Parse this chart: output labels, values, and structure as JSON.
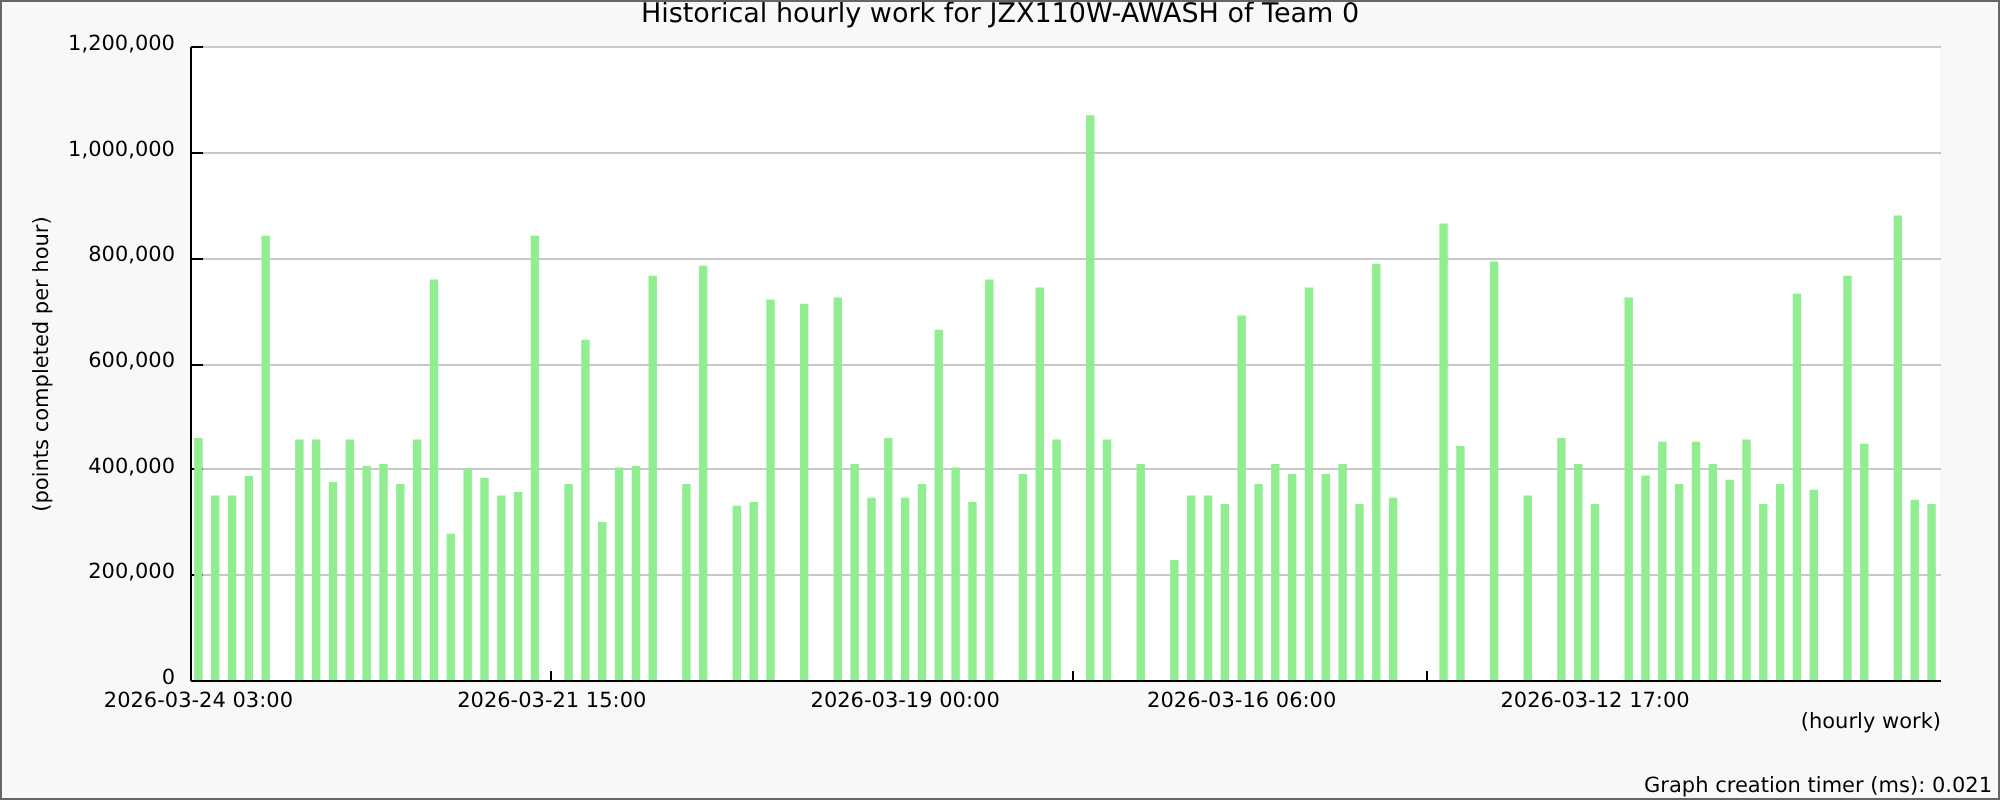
{
  "chart_data": {
    "type": "bar",
    "title": "Historical hourly work for JZX110W-AWASH of Team 0",
    "xlabel": "(hourly work)",
    "ylabel": "(points completed per hour)",
    "categories": [
      "2026-03-24 03:00",
      null,
      null,
      null,
      null,
      null,
      null,
      null,
      null,
      null,
      null,
      null,
      null,
      null,
      null,
      null,
      null,
      null,
      null,
      null,
      null,
      "2026-03-21 15:00",
      null,
      null,
      null,
      null,
      null,
      null,
      null,
      null,
      null,
      null,
      null,
      null,
      null,
      null,
      null,
      null,
      null,
      null,
      null,
      null,
      "2026-03-19 00:00",
      null,
      null,
      null,
      null,
      null,
      null,
      null,
      null,
      null,
      null,
      null,
      null,
      null,
      null,
      null,
      null,
      null,
      null,
      null,
      "2026-03-16 06:00",
      null,
      null,
      null,
      null,
      null,
      null,
      null,
      null,
      null,
      null,
      null,
      null,
      null,
      null,
      null,
      null,
      null,
      null,
      null,
      null,
      "2026-03-12 17:00",
      null,
      null,
      null,
      null,
      null,
      null,
      null,
      null,
      null,
      null,
      null,
      null,
      null,
      null,
      null,
      null,
      null,
      null,
      null,
      null
    ],
    "values": [
      458000,
      349000,
      349000,
      386000,
      841000,
      null,
      455000,
      455000,
      375000,
      455000,
      405000,
      409000,
      371000,
      455000,
      758000,
      277000,
      400000,
      383000,
      349000,
      356000,
      841000,
      null,
      371000,
      644000,
      299000,
      402000,
      405000,
      765000,
      null,
      371000,
      784000,
      null,
      330000,
      337000,
      720000,
      null,
      712000,
      null,
      724000,
      409000,
      345000,
      458000,
      345000,
      371000,
      663000,
      402000,
      337000,
      758000,
      null,
      390000,
      743000,
      455000,
      null,
      1069000,
      455000,
      null,
      409000,
      null,
      227000,
      349000,
      349000,
      333000,
      690000,
      371000,
      409000,
      390000,
      743000,
      390000,
      409000,
      333000,
      788000,
      345000,
      null,
      null,
      864000,
      443000,
      null,
      792000,
      null,
      349000,
      null,
      458000,
      409000,
      333000,
      null,
      724000,
      387000,
      451000,
      371000,
      451000,
      409000,
      379000,
      455000,
      333000,
      371000,
      731000,
      360000,
      null,
      765000,
      447000,
      null,
      879000,
      341000,
      333000
    ],
    "color": "#90ee90",
    "ylim": [
      0,
      1200000
    ],
    "yticks": [
      0,
      {
        "value": 200000,
        "label": "200,000"
      },
      {
        "value": 400000,
        "label": "400,000"
      },
      {
        "value": 600000,
        "label": "600,000"
      },
      {
        "value": 800000,
        "label": "800,000"
      },
      {
        "value": 1000000,
        "label": "1,000,000"
      },
      {
        "value": 1200000,
        "label": "1,200,000"
      }
    ],
    "grid": "y",
    "annotations": [
      "Graph creation timer (ms): 0.021"
    ]
  }
}
